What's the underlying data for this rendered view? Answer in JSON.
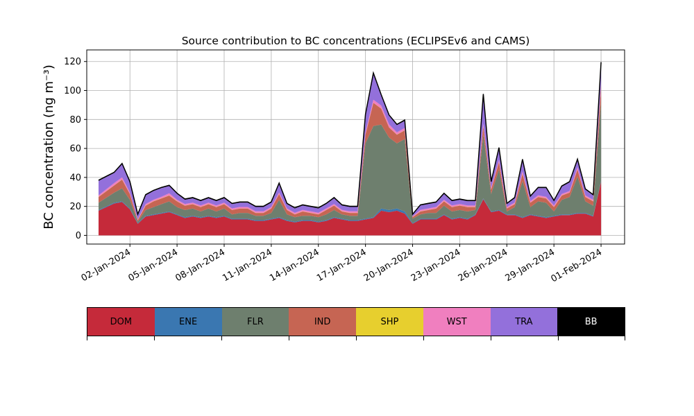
{
  "chart_data": {
    "type": "area",
    "stacked": true,
    "title": "Source contribution to BC concentrations (ECLIPSEv6 and CAMS)",
    "ylabel": "BC concentration (ng m⁻³)",
    "ylim": [
      -6,
      128
    ],
    "yticks": [
      0,
      20,
      40,
      60,
      80,
      100,
      120
    ],
    "xlim": [
      "2023-12-30T06:00",
      "2024-02-02T12:00"
    ],
    "xticks": [
      "02-Jan-2024",
      "05-Jan-2024",
      "08-Jan-2024",
      "11-Jan-2024",
      "14-Jan-2024",
      "17-Jan-2024",
      "20-Jan-2024",
      "23-Jan-2024",
      "26-Jan-2024",
      "29-Jan-2024",
      "01-Feb-2024"
    ],
    "xtick_dates": [
      "2024-01-02",
      "2024-01-05",
      "2024-01-08",
      "2024-01-11",
      "2024-01-14",
      "2024-01-17",
      "2024-01-20",
      "2024-01-23",
      "2024-01-26",
      "2024-01-29",
      "2024-02-01"
    ],
    "grid": true,
    "x": [
      "2023-12-31",
      "2024-01-01",
      "2024-01-01T12:00",
      "2024-01-02",
      "2024-01-02T12:00",
      "2024-01-03",
      "2024-01-03T12:00",
      "2024-01-04",
      "2024-01-04T12:00",
      "2024-01-05",
      "2024-01-05T12:00",
      "2024-01-06",
      "2024-01-06T12:00",
      "2024-01-07",
      "2024-01-07T12:00",
      "2024-01-08",
      "2024-01-08T12:00",
      "2024-01-09",
      "2024-01-09T12:00",
      "2024-01-10",
      "2024-01-10T12:00",
      "2024-01-11",
      "2024-01-11T12:00",
      "2024-01-12",
      "2024-01-12T12:00",
      "2024-01-13",
      "2024-01-13T12:00",
      "2024-01-14",
      "2024-01-14T12:00",
      "2024-01-15",
      "2024-01-15T12:00",
      "2024-01-16",
      "2024-01-16T12:00",
      "2024-01-17",
      "2024-01-17T12:00",
      "2024-01-18",
      "2024-01-18T12:00",
      "2024-01-19",
      "2024-01-19T12:00",
      "2024-01-20",
      "2024-01-20T12:00",
      "2024-01-21",
      "2024-01-21T12:00",
      "2024-01-22",
      "2024-01-22T12:00",
      "2024-01-23",
      "2024-01-23T12:00",
      "2024-01-24",
      "2024-01-24T12:00",
      "2024-01-25",
      "2024-01-25T12:00",
      "2024-01-26",
      "2024-01-26T12:00",
      "2024-01-27",
      "2024-01-27T12:00",
      "2024-01-28",
      "2024-01-28T12:00",
      "2024-01-29",
      "2024-01-29T12:00",
      "2024-01-30",
      "2024-01-30T12:00",
      "2024-01-31",
      "2024-01-31T12:00",
      "2024-02-01"
    ],
    "series": [
      {
        "name": "DOM",
        "color": "#c52a3a",
        "values": [
          17,
          22,
          23,
          18,
          8,
          13,
          14,
          15,
          16,
          14,
          12,
          13,
          12,
          13,
          12,
          13,
          11,
          11,
          11,
          10,
          10,
          11,
          12,
          10,
          9,
          10,
          10,
          9,
          10,
          12,
          11,
          10,
          10,
          11,
          12,
          17,
          16,
          17,
          15,
          8,
          11,
          11,
          11,
          14,
          11,
          12,
          11,
          14,
          25,
          16,
          17,
          14,
          14,
          12,
          14,
          13,
          12,
          13,
          14,
          14,
          15,
          15,
          13,
          37
        ]
      },
      {
        "name": "ENE",
        "color": "#3a77b1",
        "values": [
          0.5,
          0.5,
          0.5,
          0.5,
          0.5,
          0.5,
          0.5,
          0.5,
          0.5,
          0.5,
          0.5,
          0.5,
          0.5,
          0.5,
          0.5,
          0.5,
          0.5,
          0.5,
          0.5,
          0.5,
          0.5,
          0.5,
          0.5,
          0.5,
          0.5,
          0.5,
          0.5,
          0.5,
          0.5,
          0.5,
          0.5,
          0.5,
          0.5,
          0.5,
          0.5,
          1.5,
          1.5,
          1.5,
          1.5,
          0.5,
          0.5,
          0.5,
          0.5,
          0.5,
          0.5,
          0.5,
          0.5,
          0.5,
          0.5,
          0.5,
          0.5,
          0.5,
          0.5,
          0.5,
          0.5,
          0.5,
          0.5,
          0.5,
          0.5,
          0.5,
          0.5,
          0.5,
          0.5,
          0.5
        ]
      },
      {
        "name": "FLR",
        "color": "#6e7f6e",
        "values": [
          5,
          7,
          9,
          6,
          1,
          4,
          5,
          6,
          7,
          5,
          5,
          5,
          4,
          5,
          4,
          5,
          3,
          4,
          4,
          3,
          3,
          4,
          12,
          4,
          3,
          3,
          3,
          3,
          4,
          5,
          3,
          3,
          3,
          52,
          63,
          58,
          50,
          45,
          50,
          3,
          3,
          4,
          4,
          6,
          5,
          5,
          5,
          3,
          44,
          12,
          28,
          2,
          5,
          25,
          5,
          10,
          10,
          3,
          10,
          12,
          25,
          8,
          7,
          55
        ]
      },
      {
        "name": "IND",
        "color": "#c66553",
        "values": [
          4,
          5,
          6,
          4,
          1,
          3,
          4,
          4,
          4,
          4,
          3,
          3,
          3,
          3,
          3,
          3,
          3,
          3,
          3,
          2,
          2,
          3,
          4,
          3,
          2,
          3,
          2,
          2,
          3,
          3,
          2,
          2,
          2,
          6,
          16,
          11,
          7,
          6,
          6,
          1,
          2,
          2,
          3,
          3,
          3,
          3,
          3,
          2,
          6,
          3,
          5,
          2,
          2,
          5,
          3,
          3,
          3,
          3,
          3,
          3,
          5,
          3,
          3,
          10
        ]
      },
      {
        "name": "SHP",
        "color": "#e7cf2e",
        "values": [
          0.1,
          0.1,
          0.1,
          0.1,
          0.1,
          0.1,
          0.1,
          0.1,
          0.1,
          0.1,
          0.1,
          0.1,
          0.1,
          0.1,
          0.1,
          0.1,
          0.1,
          0.1,
          0.1,
          0.1,
          0.1,
          0.1,
          0.1,
          0.1,
          0.1,
          0.1,
          0.1,
          0.1,
          0.1,
          0.1,
          0.1,
          0.1,
          0.1,
          0.1,
          0.1,
          0.1,
          0.1,
          0.1,
          0.1,
          0.1,
          0.1,
          0.1,
          0.1,
          0.1,
          0.1,
          0.1,
          0.1,
          0.1,
          0.1,
          0.1,
          0.1,
          0.1,
          0.1,
          0.1,
          0.1,
          0.1,
          0.1,
          0.1,
          0.1,
          0.1,
          0.1,
          0.1,
          0.1,
          0.1
        ]
      },
      {
        "name": "WST",
        "color": "#f07fbf",
        "values": [
          1,
          1.5,
          1.5,
          1,
          0.5,
          1,
          1,
          1,
          1.5,
          1,
          1,
          1,
          1,
          1,
          1,
          1,
          1,
          1,
          1,
          1,
          1,
          1,
          1,
          1,
          1,
          1,
          1,
          1,
          1,
          1,
          1,
          1,
          1,
          1.5,
          2,
          2,
          2,
          1.5,
          1.5,
          0.5,
          1,
          1,
          1,
          1,
          1,
          1,
          1,
          1,
          1.5,
          1,
          1.5,
          1,
          1,
          1.5,
          1,
          1,
          1,
          1,
          1,
          1,
          1.5,
          1,
          1,
          2.5
        ]
      },
      {
        "name": "TRA",
        "color": "#9370db",
        "values": [
          10,
          7,
          9,
          7,
          3,
          6,
          6,
          6,
          5,
          4,
          3,
          3,
          3,
          3,
          3,
          3,
          3,
          3,
          3,
          3,
          3,
          3,
          6,
          3,
          3,
          3,
          3,
          3,
          3,
          4,
          3,
          3,
          3,
          12,
          18,
          7,
          6,
          5,
          5,
          1,
          3,
          3,
          3,
          4,
          3,
          3,
          3,
          3,
          20,
          4,
          8,
          2,
          3,
          8,
          3,
          5,
          6,
          3,
          5,
          6,
          5,
          4,
          3,
          14
        ]
      },
      {
        "name": "BB",
        "color": "#000000",
        "values": [
          0.5,
          0.5,
          0.5,
          0.5,
          0.5,
          0.5,
          0.5,
          0.5,
          0.5,
          0.5,
          0.5,
          0.5,
          0.5,
          0.5,
          0.5,
          0.5,
          0.5,
          0.5,
          0.5,
          0.5,
          0.5,
          0.5,
          0.5,
          0.5,
          0.5,
          0.5,
          0.5,
          0.5,
          0.5,
          0.5,
          0.5,
          0.5,
          0.5,
          0.5,
          0.5,
          0.5,
          0.5,
          0.5,
          0.5,
          0.5,
          0.5,
          0.5,
          0.5,
          0.5,
          0.5,
          0.5,
          0.5,
          0.5,
          0.5,
          0.5,
          0.5,
          0.5,
          0.5,
          0.5,
          0.5,
          0.5,
          0.5,
          0.5,
          0.5,
          0.5,
          0.5,
          0.5,
          0.5,
          0.5
        ]
      }
    ],
    "legend": [
      "DOM",
      "ENE",
      "FLR",
      "IND",
      "SHP",
      "WST",
      "TRA",
      "BB"
    ],
    "legend_placement": "bottom"
  }
}
